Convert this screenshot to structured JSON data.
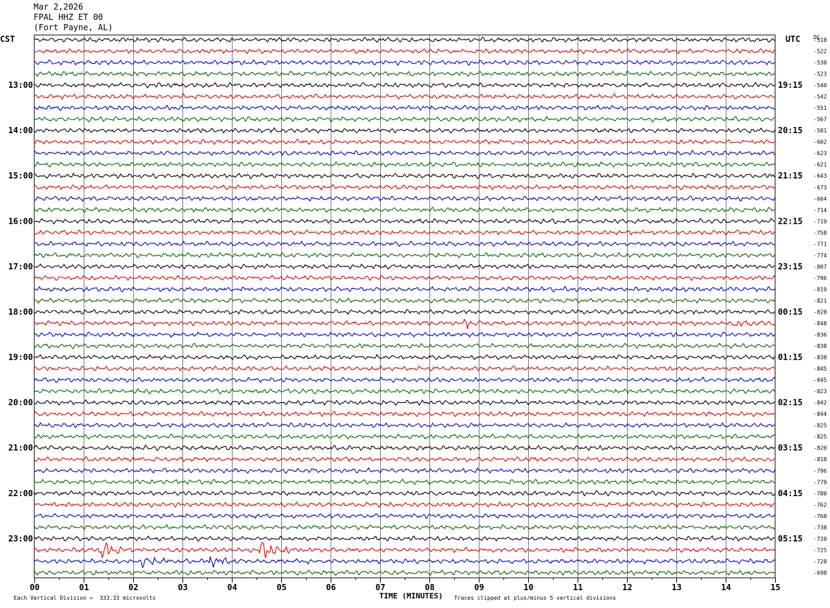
{
  "header": {
    "date": "Mar 2,2026",
    "station": "FPAL HHZ ET 00",
    "location": "(Fort Payne, AL)"
  },
  "chart_data": {
    "type": "line",
    "title": "FPAL HHZ ET 00",
    "left_timezone": "CST",
    "right_timezone": "UTC",
    "dc_label": "DC",
    "xlabel": "TIME (MINUTES)",
    "x_ticks": [
      "00",
      "01",
      "02",
      "03",
      "04",
      "05",
      "06",
      "07",
      "08",
      "09",
      "10",
      "11",
      "12",
      "13",
      "14",
      "15"
    ],
    "xlim": [
      0,
      15
    ],
    "row_count": 48,
    "trace_colors": [
      "#000000",
      "#dd0000",
      "#0000cc",
      "#006600"
    ],
    "left_hour_labels": [
      "13:00",
      "14:00",
      "15:00",
      "16:00",
      "17:00",
      "18:00",
      "19:00",
      "20:00",
      "21:00",
      "22:00",
      "23:00"
    ],
    "right_hour_labels": [
      "19:15",
      "20:15",
      "21:15",
      "22:15",
      "23:15",
      "00:15",
      "01:15",
      "02:15",
      "03:15",
      "04:15",
      "05:15"
    ],
    "dc_offsets": [
      -518,
      -522,
      -530,
      -523,
      -540,
      -542,
      -551,
      -567,
      -581,
      -602,
      -623,
      -621,
      -643,
      -673,
      -664,
      -714,
      -719,
      -758,
      -771,
      -774,
      -807,
      -796,
      -819,
      -821,
      -828,
      -848,
      -836,
      -838,
      -838,
      -845,
      -845,
      -823,
      -842,
      -844,
      -825,
      -825,
      -820,
      -818,
      -796,
      -779,
      -780,
      -762,
      -760,
      -738,
      -720,
      -725,
      -728,
      -698
    ],
    "events": [
      {
        "row": 45,
        "minute": 1.35,
        "amplitude": 2.2
      },
      {
        "row": 45,
        "minute": 4.6,
        "amplitude": 2.6
      },
      {
        "row": 46,
        "minute": 2.2,
        "amplitude": 1.3
      },
      {
        "row": 46,
        "minute": 3.55,
        "amplitude": 1.0
      },
      {
        "row": 25,
        "minute": 8.7,
        "amplitude": 0.9
      },
      {
        "row": 25,
        "minute": 14.2,
        "amplitude": 1.0
      }
    ]
  },
  "footer": {
    "division_note": "Each Vertical Division =  333.33 microvolts",
    "clip_note": "Traces clipped at plus/minus 5 vertical divisions"
  }
}
